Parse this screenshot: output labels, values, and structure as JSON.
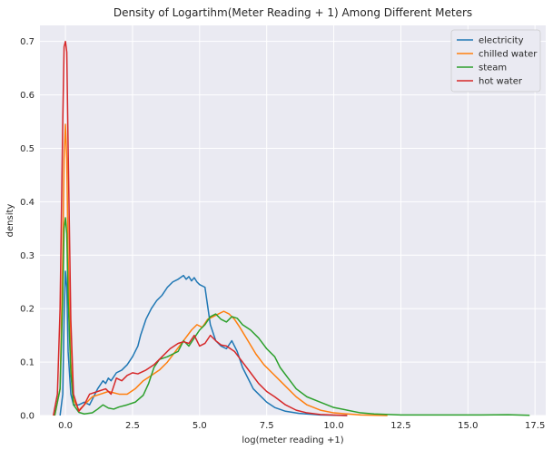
{
  "chart_data": {
    "type": "line",
    "title": "Density of Logartihm(Meter Reading + 1) Among Different Meters",
    "xlabel": "log(meter reading +1)",
    "ylabel": "density",
    "xlim": [
      -0.95,
      17.9
    ],
    "ylim": [
      0,
      0.73
    ],
    "xticks": [
      0,
      2.5,
      5,
      7.5,
      10,
      12.5,
      15,
      17.5
    ],
    "xtick_labels": [
      "0.0",
      "2.5",
      "5.0",
      "7.5",
      "10.0",
      "12.5",
      "15.0",
      "17.5"
    ],
    "yticks": [
      0,
      0.1,
      0.2,
      0.3,
      0.4,
      0.5,
      0.6,
      0.7
    ],
    "ytick_labels": [
      "0.0",
      "0.1",
      "0.2",
      "0.3",
      "0.4",
      "0.5",
      "0.6",
      "0.7"
    ],
    "grid": true,
    "legend_position": "top-right",
    "background": "#eaeaf2",
    "series": [
      {
        "name": "electricity",
        "color": "#1f77b4",
        "points": [
          [
            -0.2,
            0
          ],
          [
            -0.1,
            0.04
          ],
          [
            -0.05,
            0.18
          ],
          [
            0,
            0.27
          ],
          [
            0.05,
            0.24
          ],
          [
            0.1,
            0.12
          ],
          [
            0.2,
            0.04
          ],
          [
            0.3,
            0.02
          ],
          [
            0.5,
            0.02
          ],
          [
            0.7,
            0.025
          ],
          [
            0.9,
            0.02
          ],
          [
            1.0,
            0.03
          ],
          [
            1.2,
            0.05
          ],
          [
            1.4,
            0.065
          ],
          [
            1.5,
            0.06
          ],
          [
            1.6,
            0.07
          ],
          [
            1.7,
            0.065
          ],
          [
            1.9,
            0.08
          ],
          [
            2.1,
            0.085
          ],
          [
            2.3,
            0.095
          ],
          [
            2.5,
            0.11
          ],
          [
            2.7,
            0.13
          ],
          [
            2.8,
            0.15
          ],
          [
            3.0,
            0.18
          ],
          [
            3.2,
            0.2
          ],
          [
            3.4,
            0.215
          ],
          [
            3.6,
            0.225
          ],
          [
            3.8,
            0.24
          ],
          [
            4.0,
            0.25
          ],
          [
            4.2,
            0.255
          ],
          [
            4.4,
            0.262
          ],
          [
            4.5,
            0.255
          ],
          [
            4.6,
            0.26
          ],
          [
            4.7,
            0.252
          ],
          [
            4.8,
            0.258
          ],
          [
            4.9,
            0.25
          ],
          [
            5.0,
            0.245
          ],
          [
            5.2,
            0.24
          ],
          [
            5.3,
            0.205
          ],
          [
            5.4,
            0.17
          ],
          [
            5.6,
            0.14
          ],
          [
            5.8,
            0.13
          ],
          [
            6.0,
            0.125
          ],
          [
            6.2,
            0.14
          ],
          [
            6.4,
            0.12
          ],
          [
            6.6,
            0.09
          ],
          [
            6.8,
            0.07
          ],
          [
            7.0,
            0.05
          ],
          [
            7.2,
            0.04
          ],
          [
            7.5,
            0.025
          ],
          [
            7.8,
            0.015
          ],
          [
            8.2,
            0.008
          ],
          [
            8.7,
            0.004
          ],
          [
            9.5,
            0.001
          ],
          [
            10.5,
            0
          ]
        ]
      },
      {
        "name": "chilled water",
        "color": "#ff7f0e",
        "points": [
          [
            -0.4,
            0
          ],
          [
            -0.2,
            0.05
          ],
          [
            -0.1,
            0.3
          ],
          [
            -0.05,
            0.48
          ],
          [
            0,
            0.545
          ],
          [
            0.05,
            0.48
          ],
          [
            0.1,
            0.3
          ],
          [
            0.2,
            0.1
          ],
          [
            0.3,
            0.03
          ],
          [
            0.5,
            0.01
          ],
          [
            0.7,
            0.02
          ],
          [
            1.0,
            0.035
          ],
          [
            1.3,
            0.04
          ],
          [
            1.6,
            0.045
          ],
          [
            2.0,
            0.04
          ],
          [
            2.3,
            0.04
          ],
          [
            2.6,
            0.05
          ],
          [
            2.9,
            0.065
          ],
          [
            3.2,
            0.075
          ],
          [
            3.5,
            0.085
          ],
          [
            3.8,
            0.1
          ],
          [
            4.1,
            0.12
          ],
          [
            4.4,
            0.14
          ],
          [
            4.7,
            0.16
          ],
          [
            4.9,
            0.17
          ],
          [
            5.1,
            0.165
          ],
          [
            5.3,
            0.18
          ],
          [
            5.5,
            0.185
          ],
          [
            5.7,
            0.19
          ],
          [
            5.9,
            0.195
          ],
          [
            6.1,
            0.19
          ],
          [
            6.3,
            0.18
          ],
          [
            6.5,
            0.165
          ],
          [
            6.8,
            0.14
          ],
          [
            7.1,
            0.115
          ],
          [
            7.4,
            0.095
          ],
          [
            7.7,
            0.08
          ],
          [
            8.0,
            0.065
          ],
          [
            8.3,
            0.05
          ],
          [
            8.6,
            0.035
          ],
          [
            9.0,
            0.02
          ],
          [
            9.5,
            0.01
          ],
          [
            10.0,
            0.005
          ],
          [
            11.0,
            0.001
          ],
          [
            12.0,
            0
          ]
        ]
      },
      {
        "name": "steam",
        "color": "#2ca02c",
        "points": [
          [
            -0.4,
            0
          ],
          [
            -0.2,
            0.05
          ],
          [
            -0.1,
            0.22
          ],
          [
            -0.05,
            0.35
          ],
          [
            0,
            0.37
          ],
          [
            0.05,
            0.34
          ],
          [
            0.1,
            0.22
          ],
          [
            0.2,
            0.08
          ],
          [
            0.3,
            0.02
          ],
          [
            0.5,
            0.006
          ],
          [
            0.7,
            0.003
          ],
          [
            1.0,
            0.005
          ],
          [
            1.2,
            0.012
          ],
          [
            1.4,
            0.02
          ],
          [
            1.6,
            0.014
          ],
          [
            1.8,
            0.012
          ],
          [
            2.0,
            0.016
          ],
          [
            2.3,
            0.02
          ],
          [
            2.6,
            0.025
          ],
          [
            2.9,
            0.038
          ],
          [
            3.1,
            0.06
          ],
          [
            3.3,
            0.09
          ],
          [
            3.5,
            0.105
          ],
          [
            3.8,
            0.11
          ],
          [
            4.0,
            0.115
          ],
          [
            4.2,
            0.12
          ],
          [
            4.4,
            0.14
          ],
          [
            4.6,
            0.13
          ],
          [
            4.8,
            0.145
          ],
          [
            5.0,
            0.16
          ],
          [
            5.2,
            0.17
          ],
          [
            5.4,
            0.185
          ],
          [
            5.6,
            0.19
          ],
          [
            5.8,
            0.18
          ],
          [
            6.0,
            0.175
          ],
          [
            6.2,
            0.185
          ],
          [
            6.4,
            0.182
          ],
          [
            6.6,
            0.17
          ],
          [
            6.9,
            0.16
          ],
          [
            7.2,
            0.145
          ],
          [
            7.5,
            0.125
          ],
          [
            7.8,
            0.11
          ],
          [
            8.0,
            0.09
          ],
          [
            8.3,
            0.07
          ],
          [
            8.6,
            0.05
          ],
          [
            9.0,
            0.035
          ],
          [
            9.5,
            0.025
          ],
          [
            10.0,
            0.015
          ],
          [
            10.5,
            0.01
          ],
          [
            11.0,
            0.005
          ],
          [
            11.5,
            0.003
          ],
          [
            12.5,
            0.001
          ],
          [
            14.0,
            0.001
          ],
          [
            15.5,
            0.001
          ],
          [
            16.5,
            0.0015
          ],
          [
            17.3,
            0.0005
          ]
        ]
      },
      {
        "name": "hot water",
        "color": "#d62728",
        "points": [
          [
            -0.45,
            0
          ],
          [
            -0.3,
            0.04
          ],
          [
            -0.2,
            0.2
          ],
          [
            -0.1,
            0.55
          ],
          [
            -0.05,
            0.69
          ],
          [
            0,
            0.7
          ],
          [
            0.05,
            0.68
          ],
          [
            0.1,
            0.5
          ],
          [
            0.2,
            0.18
          ],
          [
            0.3,
            0.04
          ],
          [
            0.5,
            0.008
          ],
          [
            0.7,
            0.02
          ],
          [
            0.9,
            0.04
          ],
          [
            1.2,
            0.045
          ],
          [
            1.5,
            0.05
          ],
          [
            1.7,
            0.04
          ],
          [
            1.9,
            0.07
          ],
          [
            2.1,
            0.065
          ],
          [
            2.3,
            0.075
          ],
          [
            2.5,
            0.08
          ],
          [
            2.7,
            0.078
          ],
          [
            3.0,
            0.085
          ],
          [
            3.3,
            0.095
          ],
          [
            3.6,
            0.11
          ],
          [
            3.9,
            0.125
          ],
          [
            4.2,
            0.135
          ],
          [
            4.4,
            0.138
          ],
          [
            4.6,
            0.135
          ],
          [
            4.8,
            0.15
          ],
          [
            5.0,
            0.13
          ],
          [
            5.2,
            0.135
          ],
          [
            5.4,
            0.15
          ],
          [
            5.6,
            0.14
          ],
          [
            5.8,
            0.132
          ],
          [
            6.0,
            0.13
          ],
          [
            6.3,
            0.12
          ],
          [
            6.6,
            0.1
          ],
          [
            6.9,
            0.08
          ],
          [
            7.2,
            0.06
          ],
          [
            7.5,
            0.045
          ],
          [
            7.8,
            0.035
          ],
          [
            8.2,
            0.02
          ],
          [
            8.6,
            0.01
          ],
          [
            9.0,
            0.005
          ],
          [
            9.5,
            0.002
          ],
          [
            10.5,
            0
          ]
        ]
      }
    ]
  }
}
